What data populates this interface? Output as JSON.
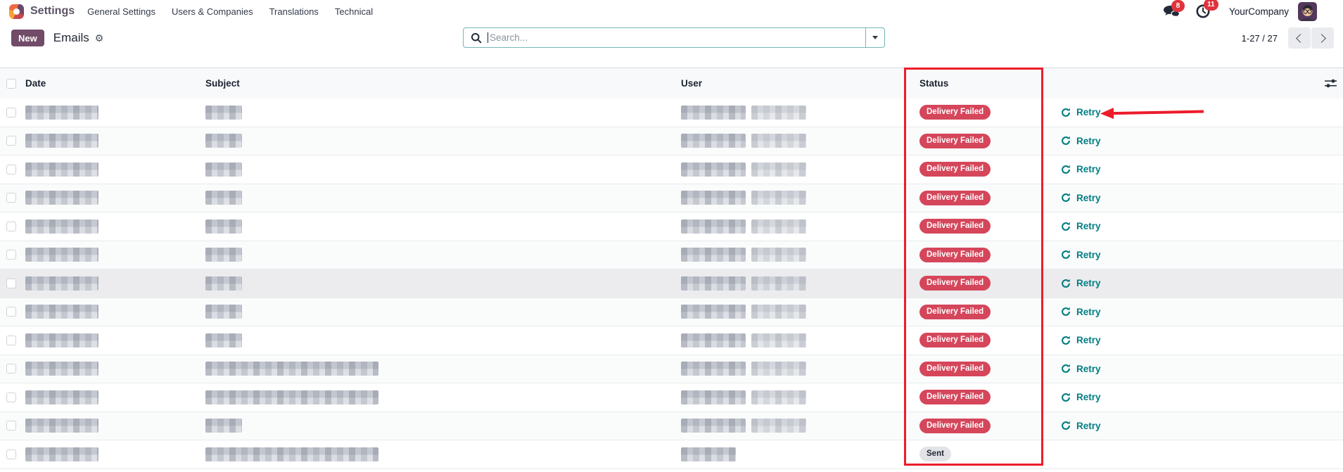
{
  "navbar": {
    "app_name": "Settings",
    "menu_items": [
      "General Settings",
      "Users & Companies",
      "Translations",
      "Technical"
    ],
    "systray": {
      "messages_badge": "8",
      "activities_badge": "11",
      "company": "YourCompany"
    }
  },
  "control_panel": {
    "new_label": "New",
    "title": "Emails",
    "search": {
      "placeholder": "Search..."
    },
    "pager": {
      "range": "1-27 / 27"
    }
  },
  "table": {
    "columns": [
      "Date",
      "Subject",
      "User",
      "Status"
    ],
    "retry_label": "Retry",
    "rows": [
      {
        "status": "Delivery Failed",
        "type": "danger",
        "subject": "short",
        "user": "double",
        "retry": true,
        "highlight": false
      },
      {
        "status": "Delivery Failed",
        "type": "danger",
        "subject": "short",
        "user": "double",
        "retry": true,
        "highlight": false
      },
      {
        "status": "Delivery Failed",
        "type": "danger",
        "subject": "short",
        "user": "double",
        "retry": true,
        "highlight": false
      },
      {
        "status": "Delivery Failed",
        "type": "danger",
        "subject": "short",
        "user": "double",
        "retry": true,
        "highlight": false
      },
      {
        "status": "Delivery Failed",
        "type": "danger",
        "subject": "short",
        "user": "double",
        "retry": true,
        "highlight": false
      },
      {
        "status": "Delivery Failed",
        "type": "danger",
        "subject": "short",
        "user": "double",
        "retry": true,
        "highlight": false
      },
      {
        "status": "Delivery Failed",
        "type": "danger",
        "subject": "short",
        "user": "double",
        "retry": true,
        "highlight": true
      },
      {
        "status": "Delivery Failed",
        "type": "danger",
        "subject": "short",
        "user": "double",
        "retry": true,
        "highlight": false
      },
      {
        "status": "Delivery Failed",
        "type": "danger",
        "subject": "short",
        "user": "double",
        "retry": true,
        "highlight": false
      },
      {
        "status": "Delivery Failed",
        "type": "danger",
        "subject": "long",
        "user": "double",
        "retry": true,
        "highlight": false
      },
      {
        "status": "Delivery Failed",
        "type": "danger",
        "subject": "long",
        "user": "double",
        "retry": true,
        "highlight": false
      },
      {
        "status": "Delivery Failed",
        "type": "danger",
        "subject": "short",
        "user": "double",
        "retry": true,
        "highlight": false
      },
      {
        "status": "Sent",
        "type": "muted",
        "subject": "long",
        "user": "single",
        "retry": false,
        "highlight": false
      }
    ]
  },
  "colors": {
    "primary": "#714b67",
    "danger_badge": "#d5465b",
    "retry_teal": "#017e84",
    "annotation_red": "#ec1c2b"
  }
}
